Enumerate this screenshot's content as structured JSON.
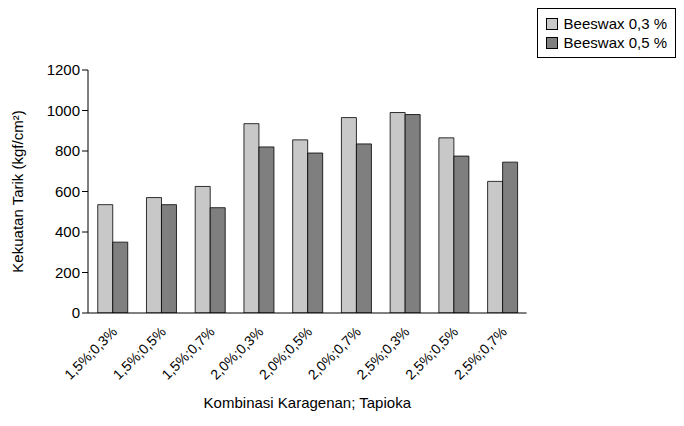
{
  "chart_data": {
    "type": "bar",
    "x_label": "Kombinasi Karagenan; Tapioka",
    "y_label": "Kekuatan Tarik (kgf/cm²)",
    "categories": [
      "1,5%;0,3%",
      "1,5%;0,5%",
      "1,5%;0,7%",
      "2,0%;0,3%",
      "2,0%;0,5%",
      "2,0%;0,7%",
      "2,5%;0,3%",
      "2,5%;0,5%",
      "2,5%;0,7%"
    ],
    "series": [
      {
        "name": "Beeswax 0,3 %",
        "color": "#c8c8c8",
        "values": [
          535,
          570,
          625,
          935,
          855,
          965,
          990,
          865,
          650
        ]
      },
      {
        "name": "Beeswax 0,5 %",
        "color": "#7f7f7f",
        "values": [
          350,
          535,
          520,
          820,
          790,
          835,
          980,
          775,
          745
        ]
      }
    ],
    "ylim": [
      0,
      1200
    ],
    "yticks": [
      0,
      200,
      400,
      600,
      800,
      1000,
      1200
    ],
    "grid": false,
    "legend": "top-right"
  }
}
